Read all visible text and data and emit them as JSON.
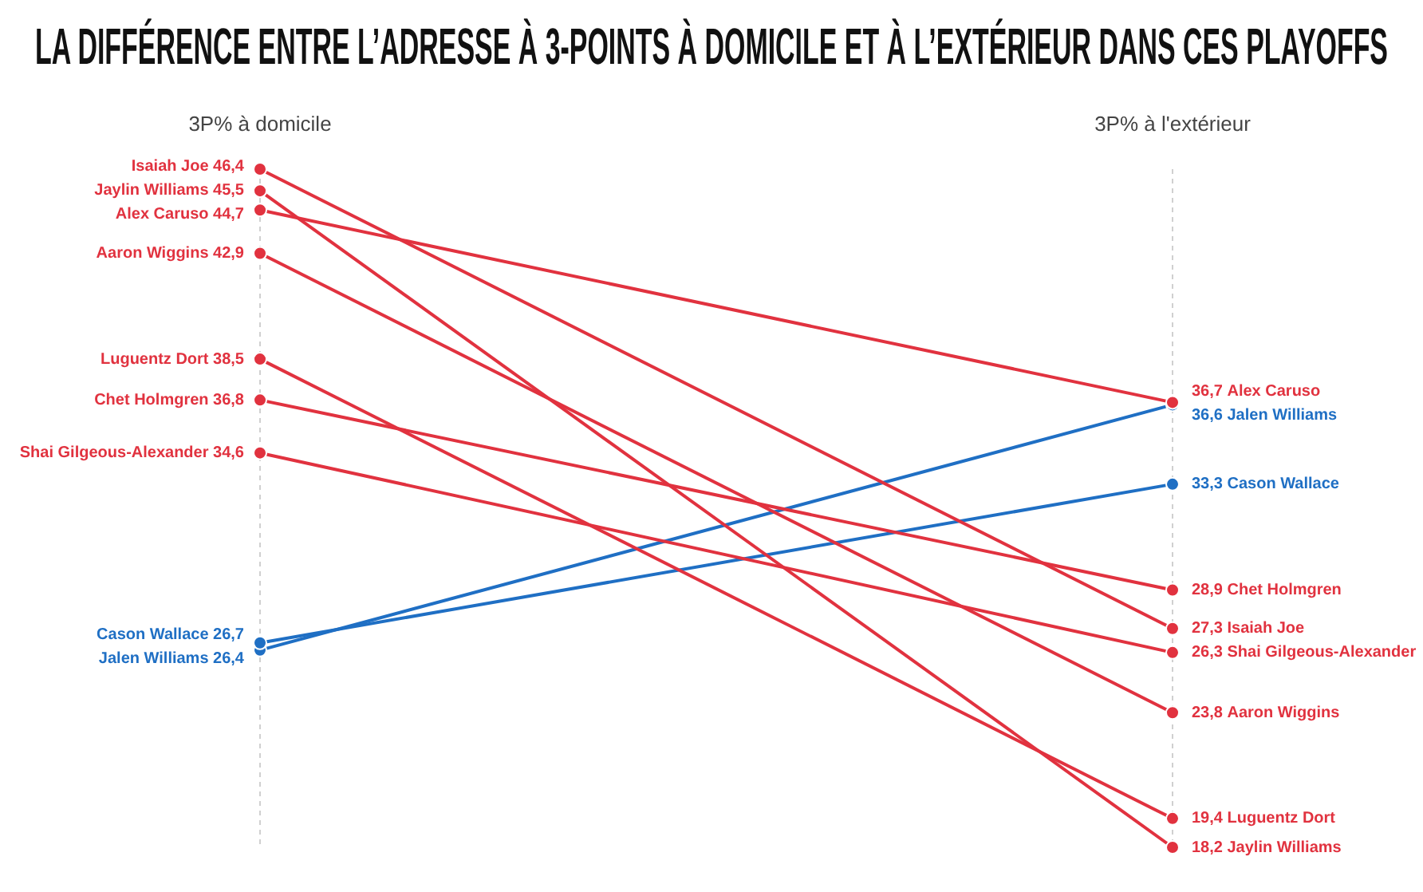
{
  "chart_data": {
    "type": "line",
    "title": "LA DIFFÉRENCE ENTRE L’ADRESSE À 3-POINTS À DOMICILE ET À L’EXTÉRIEUR DANS CES PLAYOFFS",
    "categories": [
      "3P% à domicile",
      "3P% à l'extérieur"
    ],
    "series": [
      {
        "name": "Isaiah Joe",
        "color": "#e1323f",
        "values": [
          46.4,
          27.3
        ],
        "value_labels": [
          "46,4",
          "27,3"
        ]
      },
      {
        "name": "Jaylin Williams",
        "color": "#e1323f",
        "values": [
          45.5,
          18.2
        ],
        "value_labels": [
          "45,5",
          "18,2"
        ]
      },
      {
        "name": "Alex Caruso",
        "color": "#e1323f",
        "values": [
          44.7,
          36.7
        ],
        "value_labels": [
          "44,7",
          "36,7"
        ]
      },
      {
        "name": "Aaron Wiggins",
        "color": "#e1323f",
        "values": [
          42.9,
          23.8
        ],
        "value_labels": [
          "42,9",
          "23,8"
        ]
      },
      {
        "name": "Luguentz Dort",
        "color": "#e1323f",
        "values": [
          38.5,
          19.4
        ],
        "value_labels": [
          "38,5",
          "19,4"
        ]
      },
      {
        "name": "Chet Holmgren",
        "color": "#e1323f",
        "values": [
          36.8,
          28.9
        ],
        "value_labels": [
          "36,8",
          "28,9"
        ]
      },
      {
        "name": "Shai Gilgeous-Alexander",
        "color": "#e1323f",
        "values": [
          34.6,
          26.3
        ],
        "value_labels": [
          "34,6",
          "26,3"
        ]
      },
      {
        "name": "Cason Wallace",
        "color": "#1f6fc4",
        "values": [
          26.7,
          33.3
        ],
        "value_labels": [
          "26,7",
          "33,3"
        ]
      },
      {
        "name": "Jalen Williams",
        "color": "#1f6fc4",
        "values": [
          26.4,
          36.6
        ],
        "value_labels": [
          "26,4",
          "36,6"
        ]
      }
    ],
    "grid": "x",
    "marker": "circle",
    "line_style": "solid",
    "legend": false
  }
}
